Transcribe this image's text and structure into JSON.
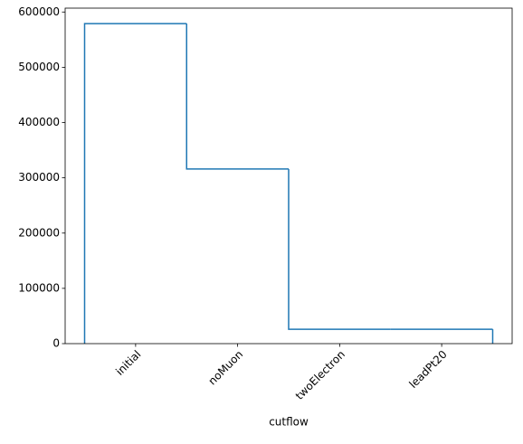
{
  "chart_data": {
    "type": "step",
    "xlabel": "cutflow",
    "categories": [
      "initial",
      "noMuon",
      "twoElectron",
      "leadPt20"
    ],
    "values": [
      579000,
      316000,
      26000,
      26000
    ],
    "color": "#1f77b4",
    "ylim": [
      0,
      607000
    ],
    "yticks": [
      0,
      100000,
      200000,
      300000,
      400000,
      500000,
      600000
    ]
  }
}
